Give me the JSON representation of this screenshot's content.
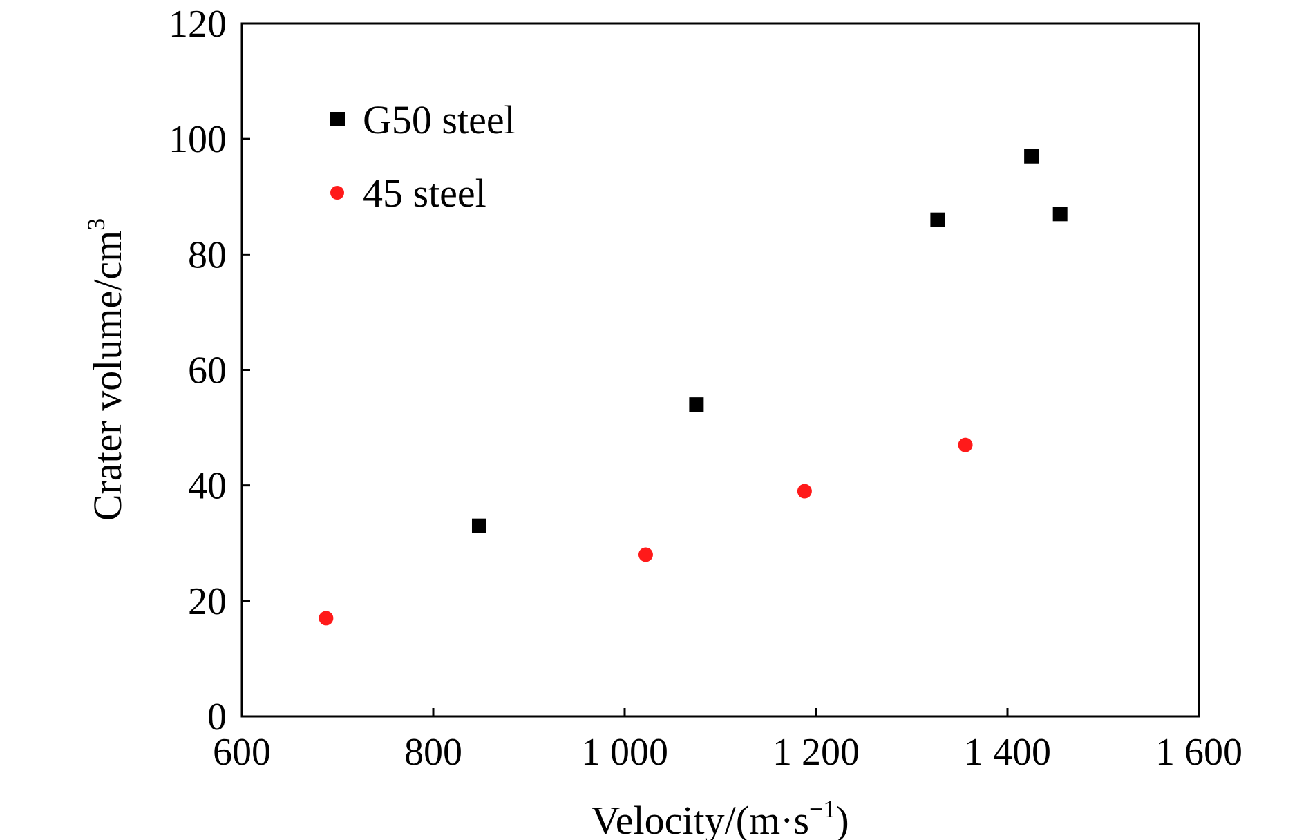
{
  "chart_data": {
    "type": "scatter",
    "xlabel": "Velocity/(m·s",
    "xlabel_sup": "−1",
    "xlabel_end": ")",
    "ylabel": "Crater volume/cm",
    "ylabel_sup": "3",
    "xlim": [
      600,
      1600
    ],
    "ylim": [
      0,
      120
    ],
    "x_ticks": [
      600,
      800,
      1000,
      1200,
      1400,
      1600
    ],
    "x_tick_labels": [
      "600",
      "800",
      "1 000",
      "1 200",
      "1 400",
      "1 600"
    ],
    "y_ticks": [
      0,
      20,
      40,
      60,
      80,
      100,
      120
    ],
    "y_tick_labels": [
      "0",
      "20",
      "40",
      "60",
      "80",
      "100",
      "120"
    ],
    "grid": false,
    "legend_position": "top-left",
    "series": [
      {
        "name": "G50 steel",
        "marker": "square",
        "color": "#000000",
        "points": [
          [
            848,
            33
          ],
          [
            1075,
            54
          ],
          [
            1327,
            86
          ],
          [
            1425,
            97
          ],
          [
            1455,
            87
          ]
        ]
      },
      {
        "name": "45 steel",
        "marker": "circle",
        "color": "#ff1a1a",
        "points": [
          [
            688,
            17
          ],
          [
            1022,
            28
          ],
          [
            1188,
            39
          ],
          [
            1356,
            47
          ]
        ]
      }
    ]
  }
}
